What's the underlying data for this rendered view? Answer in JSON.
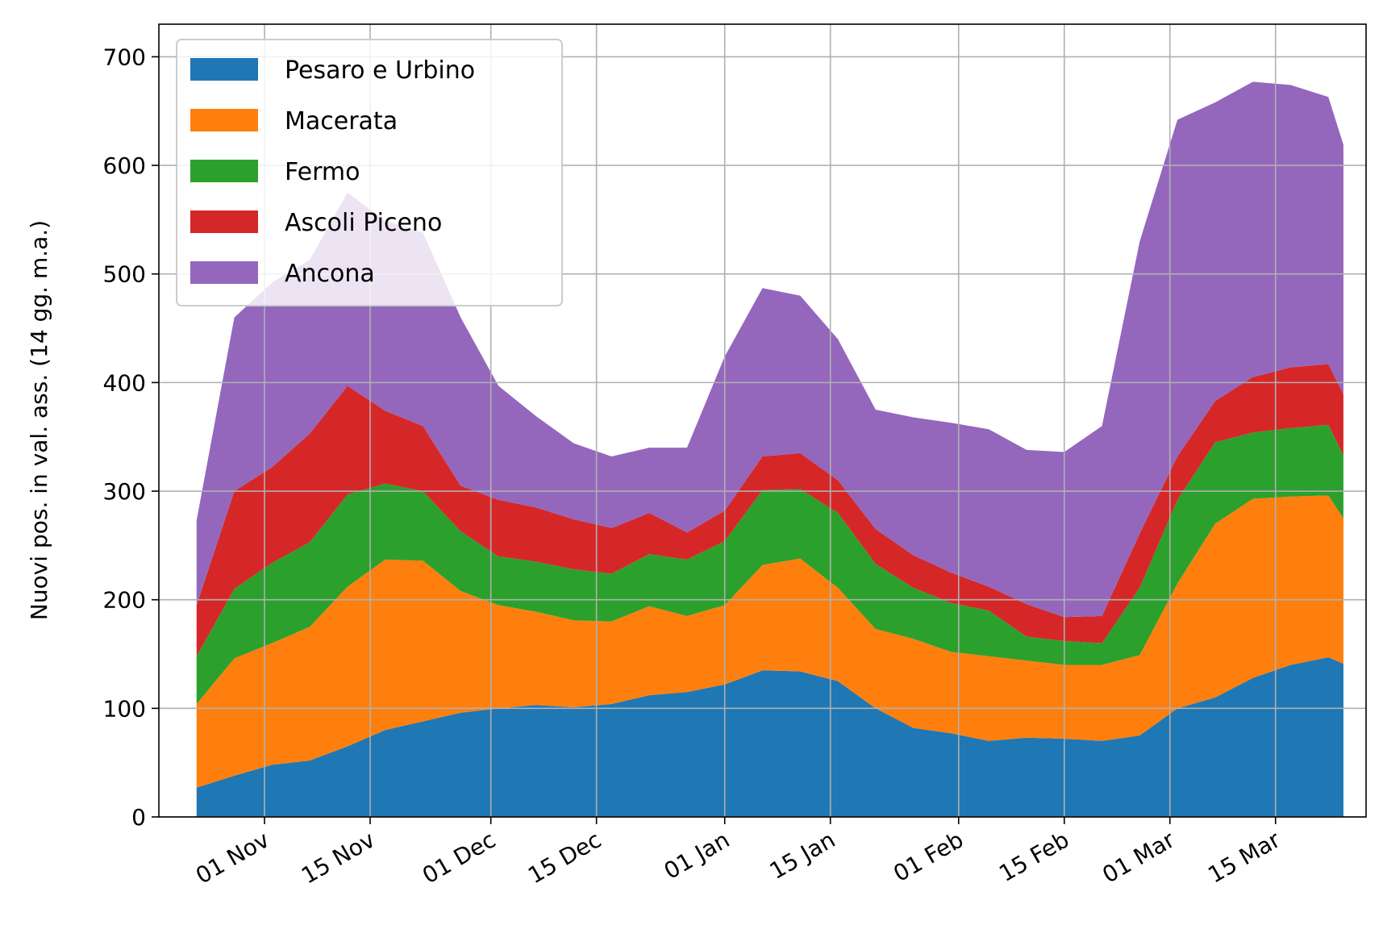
{
  "chart_data": {
    "type": "area",
    "stacked": true,
    "ylabel": "Nuovi pos. in val. ass. (14 gg. m.a.)",
    "xlabel": "",
    "ylim": [
      0,
      730
    ],
    "yticks": [
      0,
      100,
      200,
      300,
      400,
      500,
      600,
      700
    ],
    "xlim": [
      "2020-10-18",
      "2021-03-27"
    ],
    "xticks": [
      {
        "date": "2020-11-01",
        "label": "01 Nov"
      },
      {
        "date": "2020-11-15",
        "label": "15 Nov"
      },
      {
        "date": "2020-12-01",
        "label": "01 Dec"
      },
      {
        "date": "2020-12-15",
        "label": "15 Dec"
      },
      {
        "date": "2021-01-01",
        "label": "01 Jan"
      },
      {
        "date": "2021-01-15",
        "label": "15 Jan"
      },
      {
        "date": "2021-02-01",
        "label": "01 Feb"
      },
      {
        "date": "2021-02-15",
        "label": "15 Feb"
      },
      {
        "date": "2021-03-01",
        "label": "01 Mar"
      },
      {
        "date": "2021-03-15",
        "label": "15 Mar"
      }
    ],
    "grid": true,
    "legend_position": "upper-left",
    "x": [
      "2020-10-23",
      "2020-10-28",
      "2020-11-02",
      "2020-11-07",
      "2020-11-12",
      "2020-11-17",
      "2020-11-22",
      "2020-11-27",
      "2020-12-02",
      "2020-12-07",
      "2020-12-12",
      "2020-12-17",
      "2020-12-22",
      "2020-12-27",
      "2021-01-01",
      "2021-01-06",
      "2021-01-11",
      "2021-01-16",
      "2021-01-21",
      "2021-01-26",
      "2021-01-31",
      "2021-02-05",
      "2021-02-10",
      "2021-02-15",
      "2021-02-20",
      "2021-02-25",
      "2021-03-02",
      "2021-03-07",
      "2021-03-12",
      "2021-03-17",
      "2021-03-22",
      "2021-03-24"
    ],
    "series": [
      {
        "name": "Pesaro e Urbino",
        "color": "#1f77b4",
        "values": [
          27,
          38,
          48,
          52,
          65,
          80,
          88,
          96,
          100,
          103,
          101,
          104,
          112,
          115,
          122,
          135,
          134,
          125,
          100,
          82,
          77,
          70,
          73,
          72,
          70,
          75,
          100,
          110,
          128,
          140,
          147,
          141
        ]
      },
      {
        "name": "Macerata",
        "color": "#ff7f0e",
        "values": [
          77,
          108,
          112,
          123,
          147,
          157,
          148,
          112,
          95,
          86,
          80,
          76,
          82,
          70,
          73,
          97,
          104,
          86,
          73,
          82,
          75,
          78,
          71,
          68,
          70,
          74,
          115,
          160,
          165,
          155,
          149,
          134
        ]
      },
      {
        "name": "Fermo",
        "color": "#2ca02c",
        "values": [
          44,
          64,
          74,
          78,
          85,
          70,
          64,
          55,
          45,
          46,
          47,
          44,
          48,
          52,
          59,
          69,
          64,
          69,
          60,
          47,
          45,
          42,
          22,
          22,
          20,
          62,
          77,
          75,
          61,
          63,
          65,
          58
        ]
      },
      {
        "name": "Ascoli Piceno",
        "color": "#d62728",
        "values": [
          47,
          90,
          88,
          100,
          100,
          67,
          60,
          42,
          52,
          50,
          46,
          42,
          38,
          25,
          28,
          31,
          33,
          30,
          32,
          30,
          28,
          22,
          30,
          22,
          25,
          50,
          40,
          38,
          51,
          56,
          56,
          56
        ]
      },
      {
        "name": "Ancona",
        "color": "#9467bd",
        "values": [
          78,
          160,
          170,
          160,
          178,
          175,
          178,
          155,
          105,
          84,
          70,
          66,
          60,
          78,
          142,
          155,
          145,
          130,
          110,
          127,
          138,
          145,
          142,
          152,
          175,
          269,
          310,
          275,
          272,
          260,
          246,
          230
        ]
      }
    ]
  }
}
